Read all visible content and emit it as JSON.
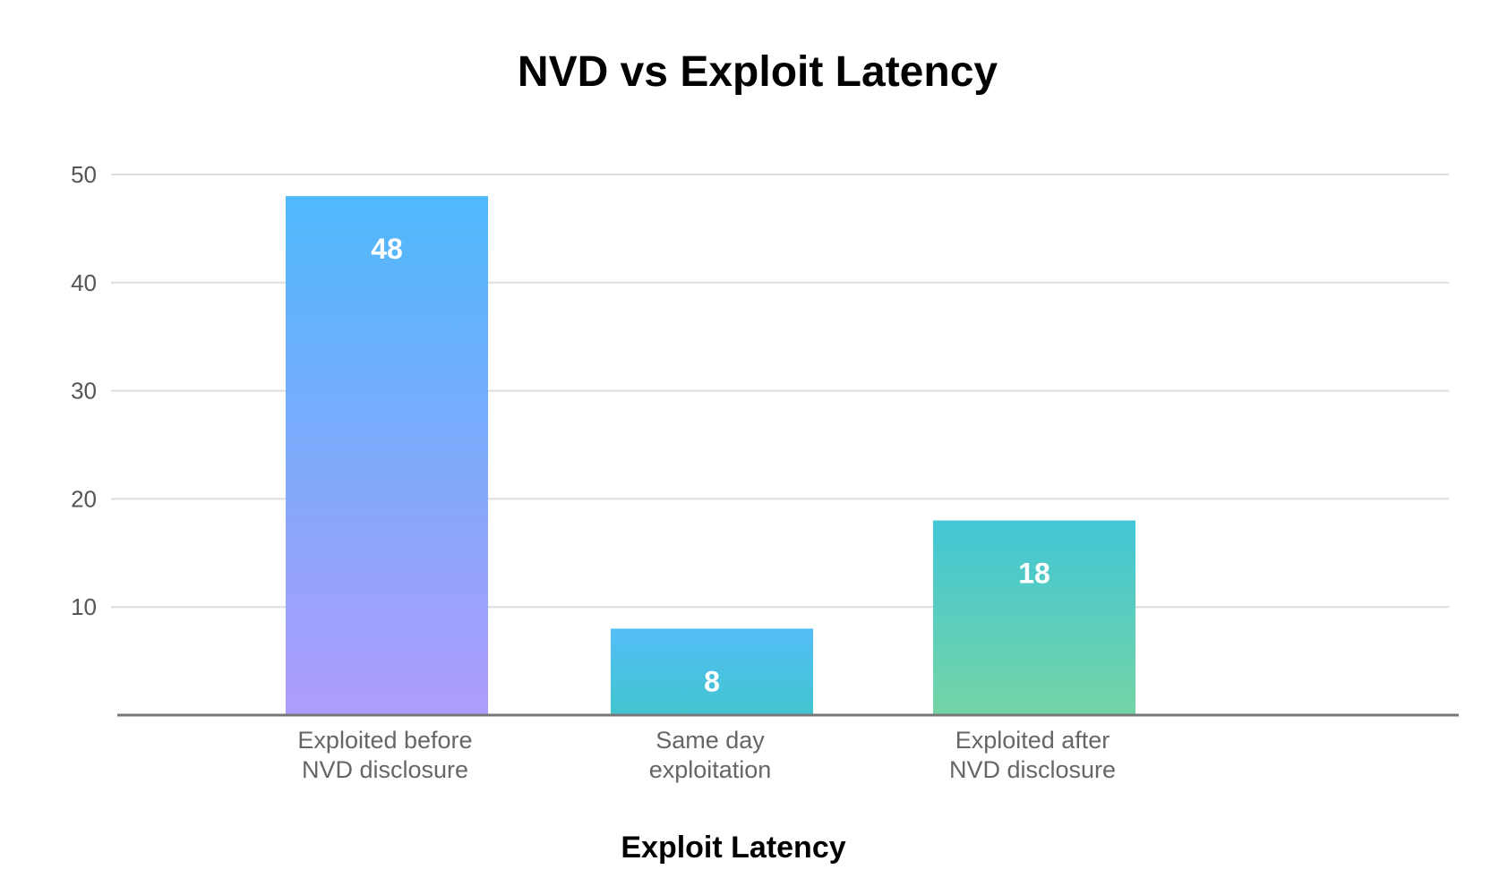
{
  "chart_data": {
    "type": "bar",
    "title": "NVD vs Exploit Latency",
    "xlabel": "Exploit Latency",
    "ylabel": "",
    "categories": [
      [
        "Exploited before",
        "NVD disclosure"
      ],
      [
        "Same day",
        "exploitation"
      ],
      [
        "Exploited after",
        "NVD disclosure"
      ]
    ],
    "values": [
      48,
      8,
      18
    ],
    "ylim": [
      0,
      50
    ],
    "yticks": [
      10,
      20,
      30,
      40,
      50
    ],
    "grid": true,
    "legend": "none",
    "bar_gradients": [
      {
        "top": "#4fb9fb",
        "bottom": "#ae9bfd"
      },
      {
        "top": "#54bef8",
        "bottom": "#41c5ce"
      },
      {
        "top": "#42c6d6",
        "bottom": "#74d5a5"
      }
    ]
  }
}
